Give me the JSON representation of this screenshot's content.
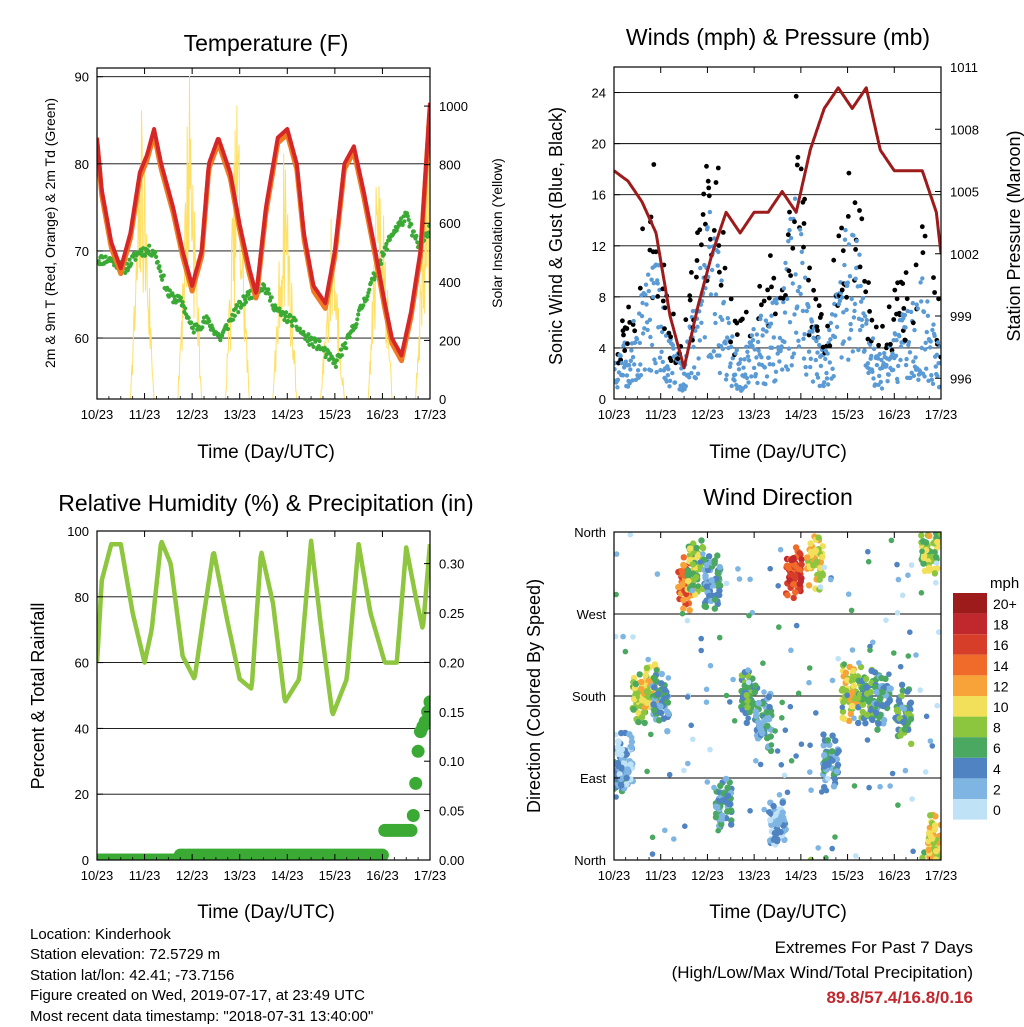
{
  "panels": {
    "temperature": {
      "title": "Temperature (F)",
      "xlabel": "Time (Day/UTC)",
      "ylabel_left": "2m & 9m T (Red, Orange) & 2m Td (Green)",
      "ylabel_right": "Solar Insolation (Yellow)"
    },
    "winds": {
      "title": "Winds (mph) & Pressure (mb)",
      "xlabel": "Time (Day/UTC)",
      "ylabel_left": "Sonic Wind & Gust (Blue, Black)",
      "ylabel_right": "Station Pressure (Maroon)"
    },
    "humidity": {
      "title": "Relative Humidity (%) & Precipitation (in)",
      "xlabel": "Time (Day/UTC)",
      "ylabel_left": "Percent & Total Rainfall"
    },
    "direction": {
      "title": "Wind Direction",
      "xlabel": "Time (Day/UTC)",
      "ylabel_left": "Direction (Colored By Speed)",
      "legend_title": "mph"
    }
  },
  "info": {
    "location": "Location: Kinderhook",
    "elevation": "Station elevation: 72.5729 m",
    "latlon": "Station lat/lon: 42.41; -73.7156",
    "created": "Figure created on Wed, 2019-07-17, at 23:49 UTC",
    "recent": "Most recent data timestamp: \"2018-07-31 13:40:00\""
  },
  "extremes": {
    "line1": "Extremes For Past 7 Days",
    "line2": "(High/Low/Max Wind/Total Precipitation)",
    "values": "89.8/57.4/16.8/0.16"
  },
  "chart_data": [
    {
      "id": "temperature",
      "type": "line",
      "x_ticks": [
        "10/23",
        "11/23",
        "12/23",
        "13/23",
        "14/23",
        "15/23",
        "16/23",
        "17/23"
      ],
      "xlim": [
        0,
        7
      ],
      "ylim": [
        53,
        91
      ],
      "y_ticks": [
        60,
        70,
        80,
        90
      ],
      "y2lim": [
        0,
        1130
      ],
      "y2_ticks": [
        0,
        200,
        400,
        600,
        800,
        1000
      ],
      "grid": true,
      "colors": {
        "t2m": "#d62728",
        "t9m": "#f07a22",
        "td2m": "#3aaa35",
        "solar": "#ffe066"
      },
      "series": [
        {
          "key": "t2m",
          "x": [
            0,
            0.1,
            0.3,
            0.5,
            0.7,
            0.9,
            1.05,
            1.2,
            1.35,
            1.6,
            1.8,
            2.0,
            2.2,
            2.35,
            2.55,
            2.8,
            3.0,
            3.2,
            3.35,
            3.55,
            3.8,
            4.0,
            4.2,
            4.35,
            4.55,
            4.8,
            5.0,
            5.2,
            5.4,
            5.6,
            5.85,
            6.05,
            6.2,
            6.4,
            6.6,
            6.8,
            7.0
          ],
          "y": [
            83,
            77,
            71,
            68,
            72,
            79,
            81,
            84,
            80,
            75,
            70,
            66,
            70,
            80,
            83,
            79,
            73,
            68,
            65,
            75,
            83,
            84,
            80,
            72,
            66,
            64,
            70,
            80,
            82,
            77,
            70,
            64,
            60,
            58,
            63,
            70,
            87
          ]
        },
        {
          "key": "td2m",
          "x": [
            0,
            0.3,
            0.6,
            0.9,
            1.2,
            1.5,
            1.8,
            2.0,
            2.3,
            2.6,
            2.9,
            3.2,
            3.5,
            3.8,
            4.1,
            4.4,
            4.7,
            5.0,
            5.3,
            5.6,
            5.9,
            6.2,
            6.5,
            6.8,
            7.0
          ],
          "y": [
            69,
            69,
            68,
            70,
            70,
            65,
            64,
            61,
            62,
            60,
            63,
            65,
            66,
            63,
            62,
            60,
            59,
            57,
            60,
            64,
            68,
            72,
            74,
            70,
            73
          ]
        },
        {
          "key": "solar",
          "x": [
            0.7,
            0.95,
            1.2,
            1.7,
            1.95,
            2.2,
            2.7,
            2.95,
            3.2,
            3.7,
            3.95,
            4.2,
            4.7,
            4.95,
            5.2,
            5.7,
            5.95,
            6.2,
            6.7,
            6.95,
            7.0
          ],
          "y": [
            0,
            900,
            0,
            0,
            1050,
            0,
            0,
            950,
            0,
            0,
            800,
            0,
            0,
            600,
            0,
            0,
            900,
            0,
            0,
            950,
            0
          ]
        }
      ]
    },
    {
      "id": "winds",
      "type": "scatter",
      "x_ticks": [
        "10/23",
        "11/23",
        "12/23",
        "13/23",
        "14/23",
        "15/23",
        "16/23",
        "17/23"
      ],
      "xlim": [
        0,
        7
      ],
      "ylim": [
        0,
        26
      ],
      "y_ticks": [
        0,
        4,
        8,
        12,
        16,
        20,
        24
      ],
      "y2lim": [
        995,
        1011
      ],
      "y2_ticks": [
        996,
        999,
        1002,
        1005,
        1008,
        1011
      ],
      "grid": true,
      "colors": {
        "wind": "#5b9bd5",
        "gust": "#000000",
        "pressure": "#9e1b1b"
      },
      "series": [
        {
          "key": "wind",
          "x": [
            0,
            0.3,
            0.6,
            0.9,
            1.2,
            1.5,
            1.8,
            2.1,
            2.4,
            2.7,
            3.0,
            3.3,
            3.6,
            3.9,
            4.2,
            4.5,
            4.8,
            5.1,
            5.4,
            5.7,
            6.0,
            6.3,
            6.6,
            6.9,
            7.0
          ],
          "y": [
            3,
            4,
            8,
            10,
            4,
            3,
            8,
            14,
            6,
            3,
            5,
            6,
            7,
            15,
            6,
            3,
            8,
            14,
            6,
            3,
            5,
            6,
            8,
            5,
            4
          ]
        },
        {
          "key": "gust",
          "x": [
            0,
            0.3,
            0.6,
            0.9,
            1.2,
            1.5,
            1.8,
            2.1,
            2.4,
            2.7,
            3.0,
            3.3,
            3.6,
            3.9,
            4.2,
            4.5,
            4.8,
            5.1,
            5.4,
            5.7,
            6.0,
            6.3,
            6.6,
            6.9,
            7.0
          ],
          "y": [
            5,
            6,
            12,
            16,
            6,
            5,
            12,
            20,
            9,
            5,
            8,
            10,
            11,
            20,
            9,
            5,
            12,
            18,
            9,
            5,
            8,
            9,
            12,
            8,
            6
          ]
        },
        {
          "key": "pressure",
          "x": [
            0,
            0.3,
            0.6,
            0.9,
            1.2,
            1.5,
            1.8,
            2.1,
            2.4,
            2.7,
            3.0,
            3.3,
            3.6,
            3.9,
            4.2,
            4.5,
            4.8,
            5.1,
            5.4,
            5.7,
            6.0,
            6.3,
            6.6,
            6.9,
            7.0
          ],
          "y": [
            1006,
            1005.5,
            1004.5,
            1003,
            999,
            996.5,
            999.5,
            1002,
            1004,
            1003,
            1004,
            1004,
            1005,
            1004,
            1007,
            1009,
            1010,
            1009,
            1010,
            1007,
            1006,
            1006,
            1006,
            1004,
            1002
          ]
        }
      ]
    },
    {
      "id": "humidity",
      "type": "line",
      "x_ticks": [
        "10/23",
        "11/23",
        "12/23",
        "13/23",
        "14/23",
        "15/23",
        "16/23",
        "17/23"
      ],
      "xlim": [
        0,
        7
      ],
      "ylim": [
        0,
        100
      ],
      "y_ticks": [
        0,
        20,
        40,
        60,
        80,
        100
      ],
      "y2lim": [
        0,
        0.333
      ],
      "y2_ticks": [
        0.0,
        0.05,
        0.1,
        0.15,
        0.2,
        0.25,
        0.3
      ],
      "grid": true,
      "colors": {
        "rh": "#8ec63f",
        "precip": "#3aaa35"
      },
      "series": [
        {
          "key": "rh",
          "x": [
            0,
            0.1,
            0.3,
            0.5,
            0.75,
            1.0,
            1.15,
            1.35,
            1.55,
            1.8,
            2.05,
            2.25,
            2.45,
            2.75,
            3.0,
            3.25,
            3.45,
            3.7,
            3.95,
            4.25,
            4.5,
            4.7,
            4.95,
            5.25,
            5.5,
            5.75,
            6.05,
            6.3,
            6.5,
            6.7,
            6.85,
            7.0
          ],
          "y": [
            60,
            85,
            96,
            96,
            75,
            60,
            70,
            97,
            90,
            62,
            55,
            75,
            94,
            72,
            55,
            52,
            94,
            78,
            48,
            55,
            97,
            72,
            44,
            55,
            96,
            75,
            60,
            60,
            95,
            80,
            70,
            96
          ]
        },
        {
          "key": "precip",
          "x": [
            0,
            1.7,
            1.75,
            6.0,
            6.05,
            6.6,
            6.65,
            6.75,
            6.8,
            6.9,
            6.95,
            7.0
          ],
          "y": [
            0,
            0,
            0.005,
            0.005,
            0.03,
            0.03,
            0.045,
            0.11,
            0.13,
            0.14,
            0.15,
            0.16
          ]
        }
      ]
    },
    {
      "id": "direction",
      "type": "scatter",
      "x_ticks": [
        "10/23",
        "11/23",
        "12/23",
        "13/23",
        "14/23",
        "15/23",
        "16/23",
        "17/23"
      ],
      "xlim": [
        0,
        7
      ],
      "ylim": [
        0,
        360
      ],
      "y_tick_labels": [
        "North",
        "East",
        "South",
        "West",
        "North"
      ],
      "y_tick_values": [
        0,
        90,
        180,
        270,
        360
      ],
      "grid": true,
      "legend": {
        "position": "right",
        "labels": [
          "20+",
          "18",
          "16",
          "14",
          "12",
          "10",
          "8",
          "6",
          "4",
          "2",
          "0"
        ],
        "colors": [
          "#9e1b1b",
          "#c0282e",
          "#d63e2a",
          "#f06b2a",
          "#f7a33a",
          "#f2e05a",
          "#8cc63f",
          "#4aa860",
          "#4f83c2",
          "#7fb5e2",
          "#bfe2f7"
        ]
      },
      "clusters": [
        {
          "x": 0.05,
          "dir": 90,
          "speed": 4
        },
        {
          "x": 0.25,
          "dir": 110,
          "speed": 2
        },
        {
          "x": 0.55,
          "dir": 180,
          "speed": 8
        },
        {
          "x": 0.75,
          "dir": 185,
          "speed": 10
        },
        {
          "x": 1.0,
          "dir": 175,
          "speed": 4
        },
        {
          "x": 1.55,
          "dir": 305,
          "speed": 14
        },
        {
          "x": 1.75,
          "dir": 320,
          "speed": 8
        },
        {
          "x": 2.1,
          "dir": 310,
          "speed": 4
        },
        {
          "x": 2.35,
          "dir": 60,
          "speed": 4
        },
        {
          "x": 2.9,
          "dir": 180,
          "speed": 6
        },
        {
          "x": 3.2,
          "dir": 150,
          "speed": 4
        },
        {
          "x": 3.5,
          "dir": 40,
          "speed": 2
        },
        {
          "x": 3.85,
          "dir": 315,
          "speed": 16
        },
        {
          "x": 4.3,
          "dir": 330,
          "speed": 10
        },
        {
          "x": 4.65,
          "dir": 110,
          "speed": 4
        },
        {
          "x": 5.05,
          "dir": 185,
          "speed": 10
        },
        {
          "x": 5.4,
          "dir": 180,
          "speed": 6
        },
        {
          "x": 5.75,
          "dir": 175,
          "speed": 4
        },
        {
          "x": 6.2,
          "dir": 160,
          "speed": 6
        },
        {
          "x": 6.75,
          "dir": 340,
          "speed": 8
        },
        {
          "x": 6.9,
          "dir": 20,
          "speed": 10
        }
      ]
    }
  ]
}
